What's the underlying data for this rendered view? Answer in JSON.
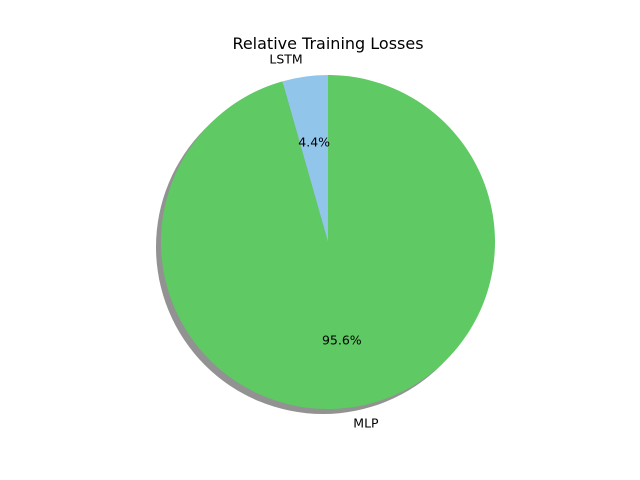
{
  "chart_data": {
    "type": "pie",
    "title": "Relative Training Losses",
    "slices": [
      {
        "label": "LSTM",
        "value": 4.4,
        "pct_label": "4.4%",
        "color": "#92c5ea"
      },
      {
        "label": "MLP",
        "value": 95.6,
        "pct_label": "95.6%",
        "color": "#5fc964"
      }
    ],
    "start_angle_deg": 90,
    "direction": "counterclockwise",
    "shadow": true,
    "shadow_color": "#7f7f7f",
    "legend": "none"
  }
}
